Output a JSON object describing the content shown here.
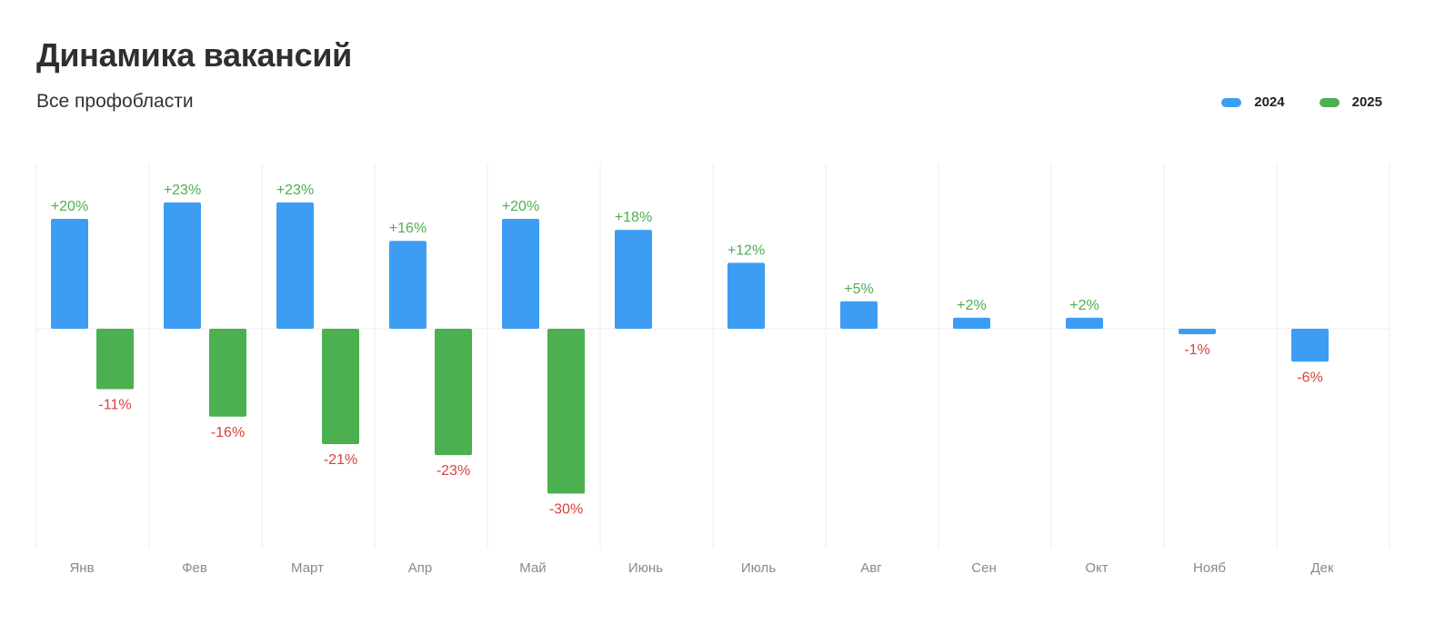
{
  "header": {
    "title": "Динамика вакансий",
    "subtitle": "Все профобласти"
  },
  "colors": {
    "series_2024": "#3d9df3",
    "series_2025": "#4caf50",
    "positive_label": "#4caf50",
    "negative_label": "#d94040",
    "grid": "#ececec",
    "tick": "#8a8a8a"
  },
  "chart_data": {
    "type": "bar",
    "title": "Динамика вакансий",
    "subtitle": "Все профобласти",
    "xlabel": "",
    "ylabel": "",
    "ylim": [
      -31,
      31
    ],
    "grid": "vertical",
    "legend_position": "top-right",
    "categories": [
      "Янв",
      "Фев",
      "Март",
      "Апр",
      "Май",
      "Июнь",
      "Июль",
      "Авг",
      "Сен",
      "Окт",
      "Нояб",
      "Дек"
    ],
    "series": [
      {
        "name": "2024",
        "values": [
          20,
          23,
          23,
          16,
          20,
          18,
          12,
          5,
          2,
          2,
          -1,
          -6
        ],
        "labels": [
          "+20%",
          "+23%",
          "+23%",
          "+16%",
          "+20%",
          "+18%",
          "+12%",
          "+5%",
          "+2%",
          "+2%",
          "-1%",
          "-6%"
        ]
      },
      {
        "name": "2025",
        "values": [
          -11,
          -16,
          -21,
          -23,
          -30,
          null,
          null,
          null,
          null,
          null,
          null,
          null
        ],
        "labels": [
          "-11%",
          "-16%",
          "-21%",
          "-23%",
          "-30%",
          null,
          null,
          null,
          null,
          null,
          null,
          null
        ]
      }
    ]
  }
}
